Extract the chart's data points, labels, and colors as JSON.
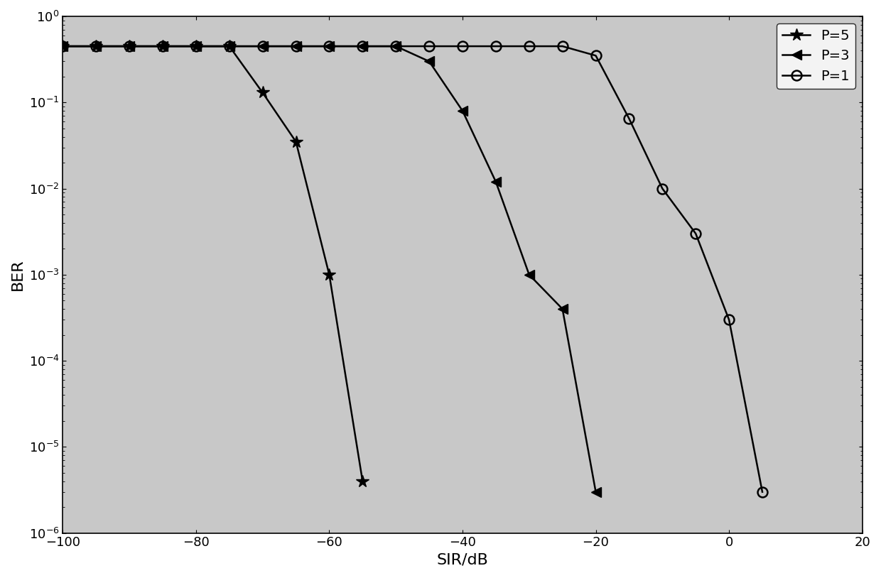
{
  "P5_x": [
    -100,
    -95,
    -90,
    -85,
    -80,
    -75,
    -70,
    -65,
    -60,
    -55
  ],
  "P5_y": [
    0.45,
    0.45,
    0.45,
    0.45,
    0.45,
    0.45,
    0.13,
    0.035,
    0.001,
    4e-06
  ],
  "P3_x": [
    -100,
    -95,
    -90,
    -85,
    -80,
    -75,
    -70,
    -65,
    -60,
    -55,
    -50,
    -45,
    -40,
    -35,
    -30,
    -25,
    -20
  ],
  "P3_y": [
    0.45,
    0.45,
    0.45,
    0.45,
    0.45,
    0.45,
    0.45,
    0.45,
    0.45,
    0.45,
    0.45,
    0.3,
    0.08,
    0.012,
    0.001,
    0.0004,
    3e-06
  ],
  "P1_x": [
    -100,
    -95,
    -90,
    -85,
    -80,
    -75,
    -70,
    -65,
    -60,
    -55,
    -50,
    -45,
    -40,
    -35,
    -30,
    -25,
    -20,
    -15,
    -10,
    -5,
    0,
    5
  ],
  "P1_y": [
    0.45,
    0.45,
    0.45,
    0.45,
    0.45,
    0.45,
    0.45,
    0.45,
    0.45,
    0.45,
    0.45,
    0.45,
    0.45,
    0.45,
    0.45,
    0.45,
    0.35,
    0.065,
    0.01,
    0.003,
    0.0003,
    3e-06
  ],
  "xlim": [
    -100,
    20
  ],
  "ylim": [
    1e-06,
    1
  ],
  "xlabel": "SIR/dB",
  "ylabel": "BER",
  "xticks": [
    -100,
    -80,
    -60,
    -40,
    -20,
    0,
    20
  ],
  "legend_labels": [
    "P=5",
    "P=3",
    "P=1"
  ],
  "color": "#000000",
  "linewidth": 1.8,
  "markersize": 9,
  "bg_color": "#c8c8c8"
}
